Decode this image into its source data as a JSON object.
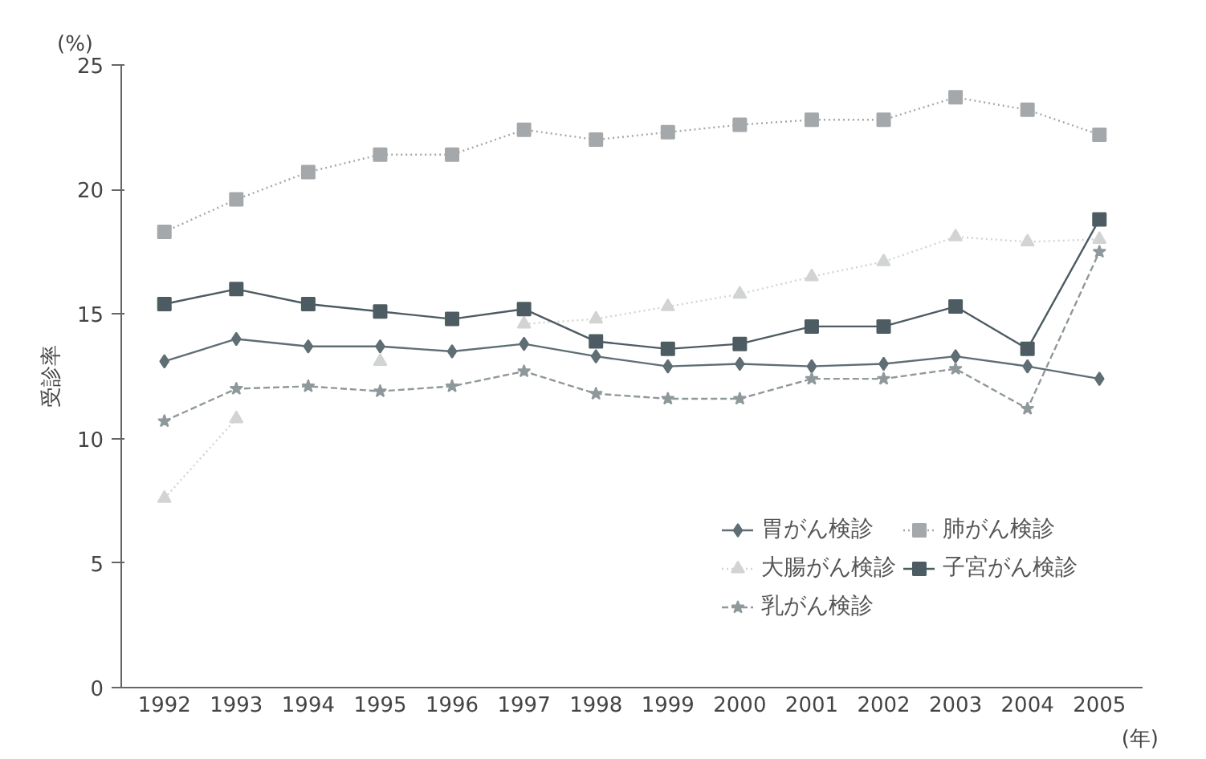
{
  "chart_data": {
    "type": "line",
    "ylabel": "受診率",
    "xlabel": "(年)",
    "annotations": [
      "(%)"
    ],
    "categories": [
      "1992",
      "1993",
      "1994",
      "1995",
      "1996",
      "1997",
      "1998",
      "1999",
      "2000",
      "2001",
      "2002",
      "2003",
      "2004",
      "2005"
    ],
    "ylim": [
      0,
      25
    ],
    "yticks": [
      0,
      5,
      10,
      15,
      20,
      25
    ],
    "grid": false,
    "legend": "bottom right",
    "series": [
      {
        "name": "胃がん検診",
        "color": "#5f6e74",
        "marker": "diamond",
        "line_style": "solid",
        "values": [
          13.1,
          14.0,
          13.7,
          13.7,
          13.5,
          13.8,
          13.3,
          12.9,
          13.0,
          12.9,
          13.0,
          13.3,
          12.9,
          12.4
        ]
      },
      {
        "name": "肺がん検診",
        "color": "#a4a8aa",
        "marker": "square",
        "line_style": "dotted",
        "values": [
          18.3,
          19.6,
          20.7,
          21.4,
          21.4,
          22.4,
          22.0,
          22.3,
          22.6,
          22.8,
          22.8,
          23.7,
          23.2,
          22.2
        ]
      },
      {
        "name": "大腸がん検診",
        "color": "#d2d4d4",
        "marker": "triangle",
        "line_style": "dotted",
        "values": [
          7.6,
          10.8,
          null,
          13.1,
          null,
          14.6,
          14.8,
          15.3,
          15.8,
          16.5,
          17.1,
          18.1,
          17.9,
          18.0
        ]
      },
      {
        "name": "子宮がん検診",
        "color": "#4d5c62",
        "marker": "square",
        "line_style": "solid",
        "values": [
          15.4,
          16.0,
          15.4,
          15.1,
          14.8,
          15.2,
          13.9,
          13.6,
          13.8,
          14.5,
          14.5,
          15.3,
          13.6,
          18.8
        ]
      },
      {
        "name": "乳がん検診",
        "color": "#8f989b",
        "marker": "star",
        "line_style": "dashed",
        "values": [
          10.7,
          12.0,
          12.1,
          11.9,
          12.1,
          12.7,
          11.8,
          11.6,
          11.6,
          12.4,
          12.4,
          12.8,
          11.2,
          17.5
        ]
      }
    ]
  }
}
